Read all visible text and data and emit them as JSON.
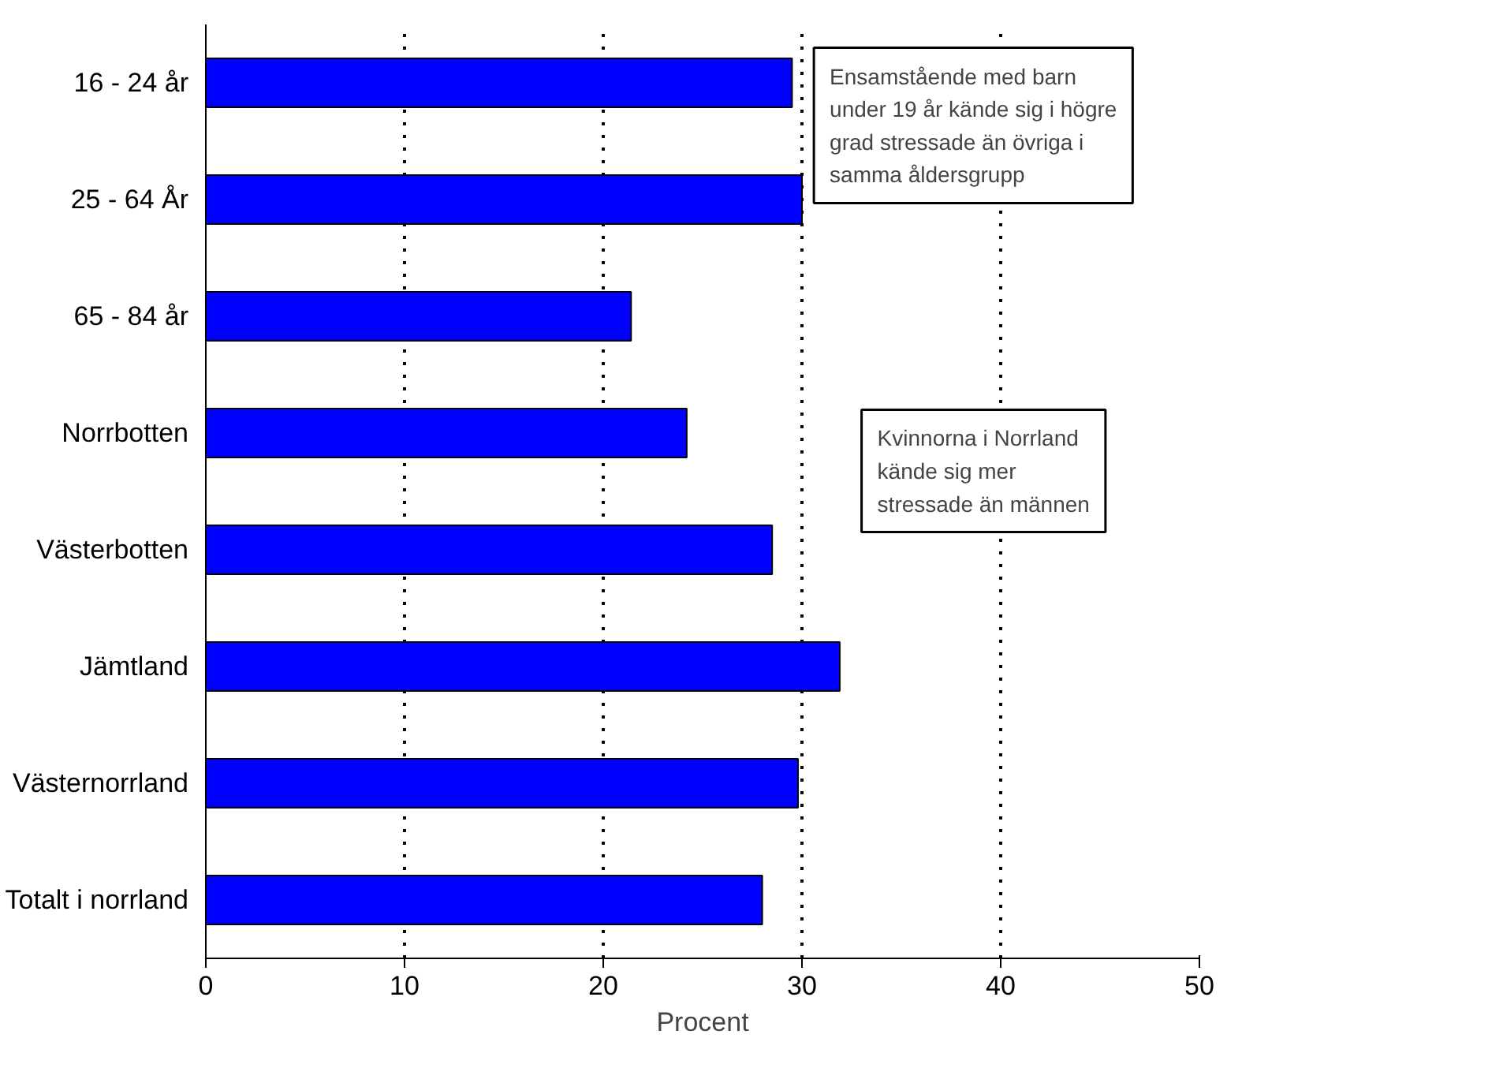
{
  "chart_data": {
    "type": "bar",
    "orientation": "horizontal",
    "xlabel": "Procent",
    "categories": [
      "16 - 24 år",
      "25 - 64 År",
      "65 - 84 år",
      "Norrbotten",
      "Västerbotten",
      "Jämtland",
      "Västernorrland",
      "Totalt i norrland"
    ],
    "values": [
      29.5,
      30.0,
      21.4,
      24.2,
      28.5,
      31.9,
      29.8,
      28.0
    ],
    "color": "#0000ff",
    "xlim": [
      0,
      50
    ],
    "xticks": [
      0,
      10,
      20,
      30,
      40,
      50
    ],
    "grid": "x",
    "annotations": [
      "Ensamstående med barn\nunder 19 år kände sig i högre\ngrad stressade än övriga i\nsamma åldersgrupp",
      "Kvinnorna i Norrland\nkände sig mer\nstressade än männen"
    ]
  }
}
